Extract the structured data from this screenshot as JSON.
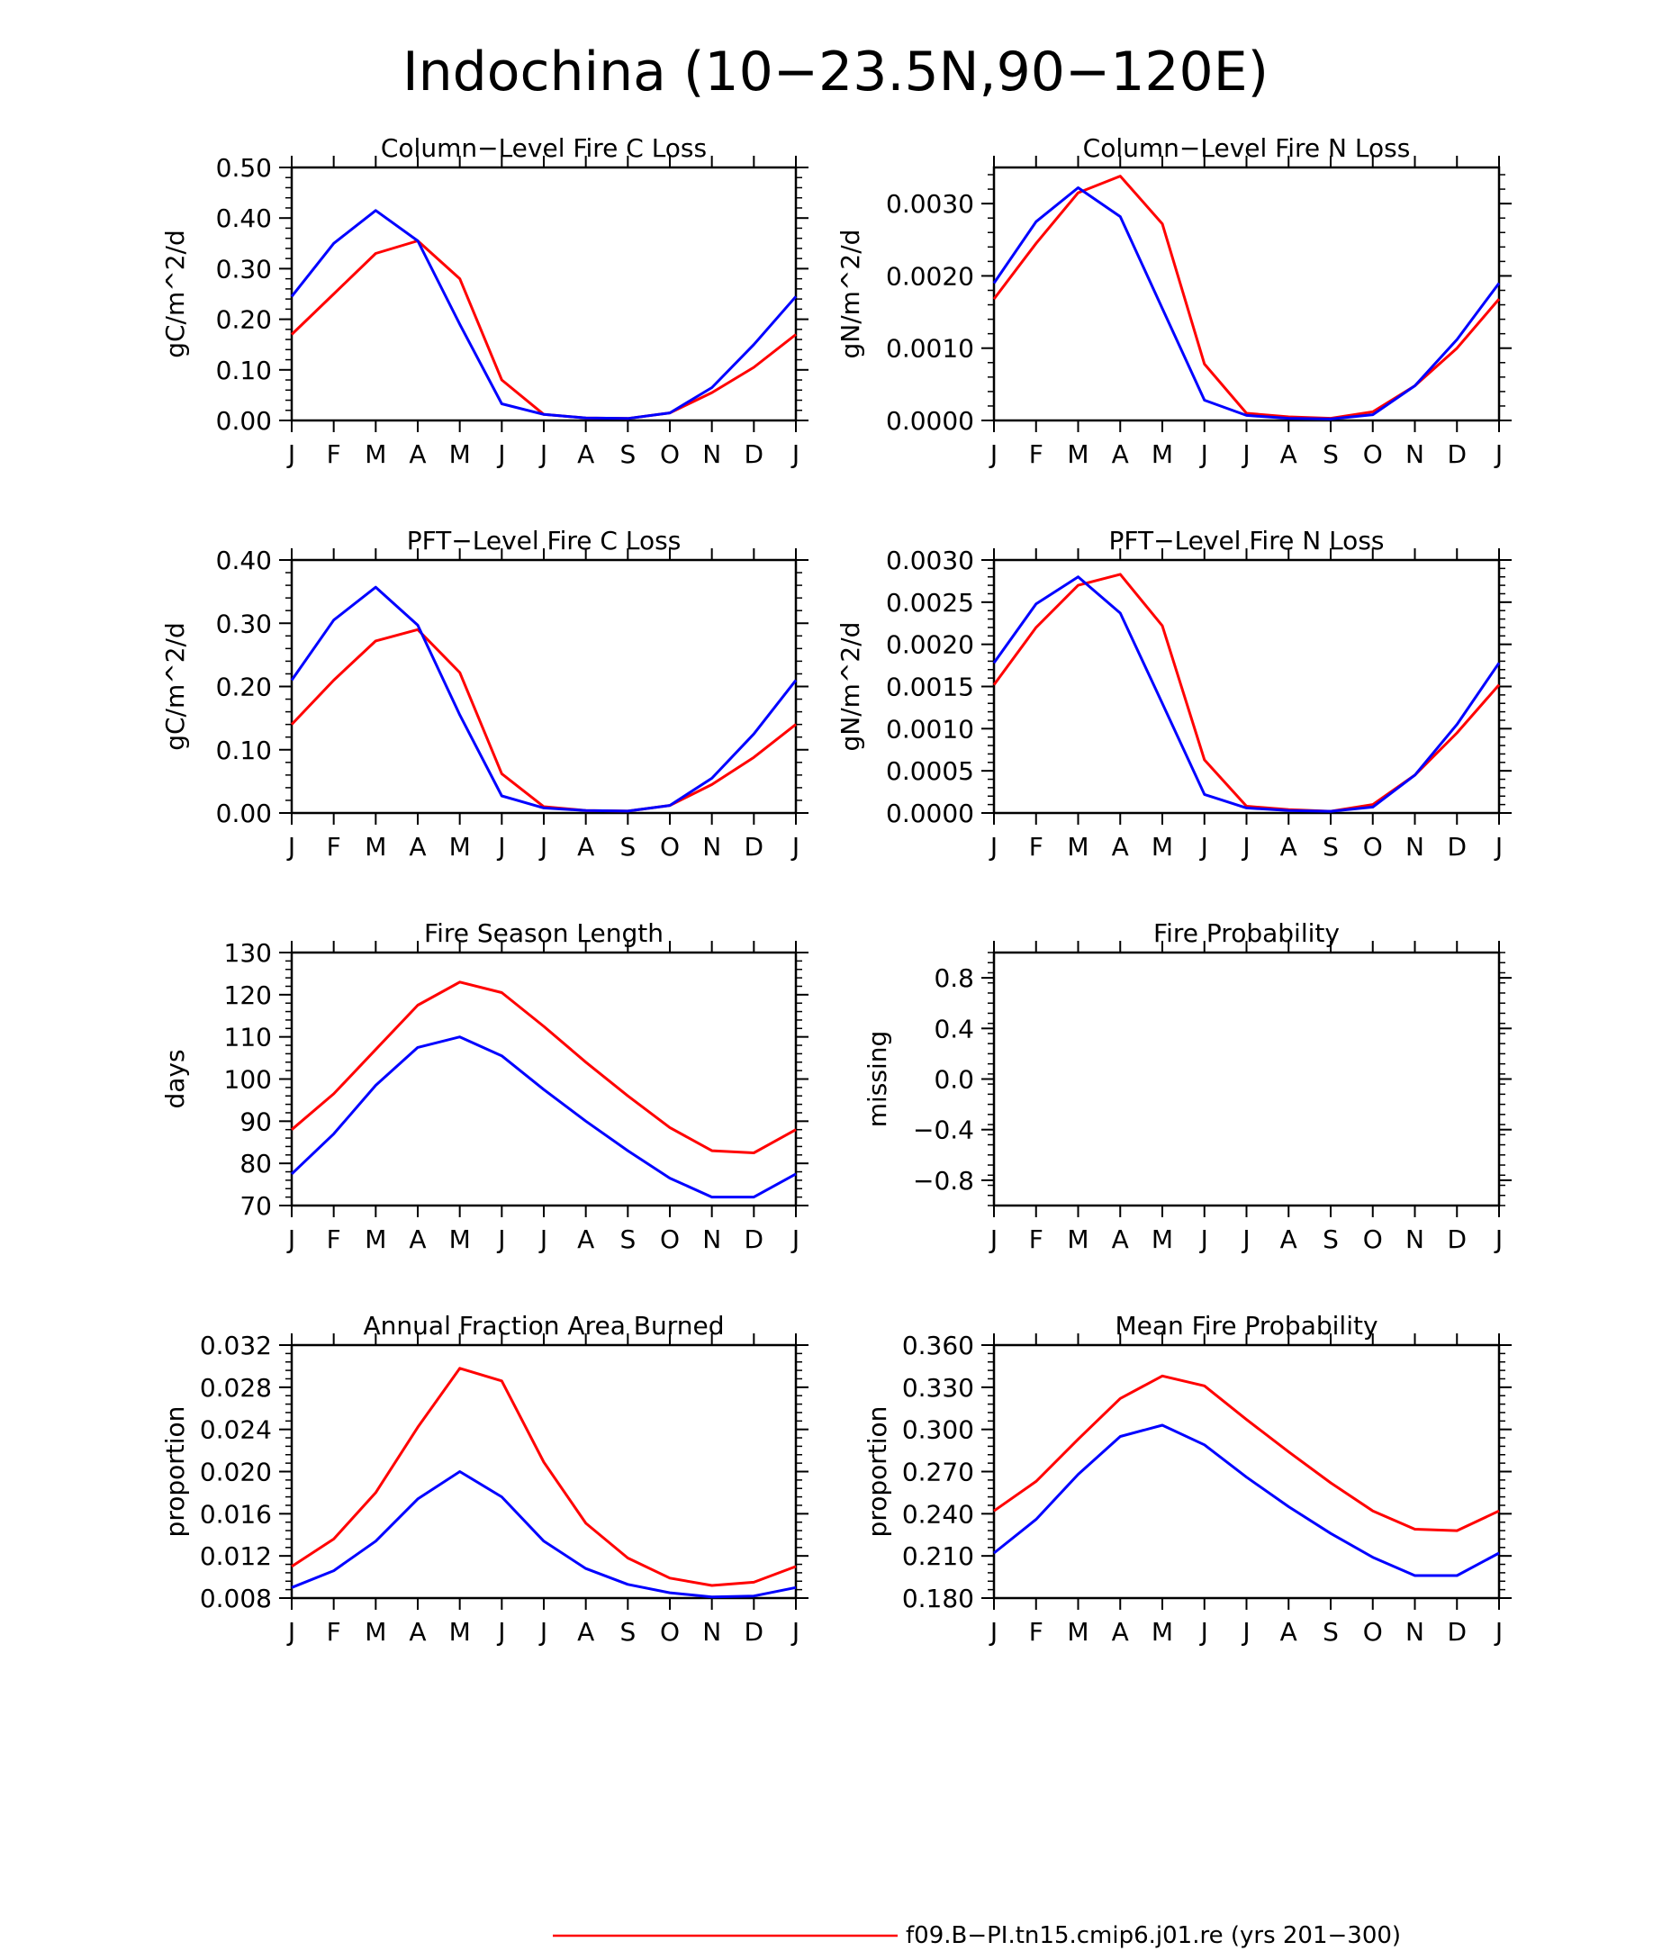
{
  "figure": {
    "title": "Indochina (10−23.5N,90−120E)",
    "legend": [
      {
        "label": "f09.B−PI.tn15.cmip6.j01.re (yrs 201−300)",
        "color": "#ff0000"
      }
    ]
  },
  "colors": {
    "series_a": "#ff0000",
    "series_b": "#0000ff",
    "axis": "#000000",
    "background": "#ffffff"
  },
  "chart_data": [
    {
      "id": "column-fire-c-loss",
      "type": "line",
      "title": "Column−Level Fire C Loss",
      "ylabel": "gC/m^2/d",
      "xlabel": "",
      "categories": [
        "J",
        "F",
        "M",
        "A",
        "M",
        "J",
        "J",
        "A",
        "S",
        "O",
        "N",
        "D",
        "J"
      ],
      "ylim": [
        0,
        0.5
      ],
      "yticks": [
        "0.00",
        "0.10",
        "0.20",
        "0.30",
        "0.40",
        "0.50"
      ],
      "series": [
        {
          "values": [
            0.17,
            0.25,
            0.33,
            0.355,
            0.28,
            0.08,
            0.012,
            0.005,
            0.004,
            0.015,
            0.055,
            0.105,
            0.17
          ],
          "color": "#ff0000"
        },
        {
          "values": [
            0.245,
            0.35,
            0.415,
            0.355,
            0.19,
            0.033,
            0.012,
            0.005,
            0.004,
            0.015,
            0.065,
            0.15,
            0.245
          ],
          "color": "#0000ff"
        }
      ]
    },
    {
      "id": "column-fire-n-loss",
      "type": "line",
      "title": "Column−Level Fire N Loss",
      "ylabel": "gN/m^2/d",
      "xlabel": "",
      "categories": [
        "J",
        "F",
        "M",
        "A",
        "M",
        "J",
        "J",
        "A",
        "S",
        "O",
        "N",
        "D",
        "J"
      ],
      "ylim": [
        0,
        0.0035
      ],
      "yticks": [
        "0.0000",
        "0.0010",
        "0.0020",
        "0.0030"
      ],
      "series": [
        {
          "values": [
            0.00168,
            0.00245,
            0.00315,
            0.00338,
            0.00272,
            0.00078,
            0.0001,
            5e-05,
            3e-05,
            0.00012,
            0.00048,
            0.001,
            0.00168
          ],
          "color": "#ff0000"
        },
        {
          "values": [
            0.0019,
            0.00275,
            0.00322,
            0.00282,
            0.00155,
            0.00028,
            7e-05,
            3e-05,
            2e-05,
            8e-05,
            0.00048,
            0.00112,
            0.0019
          ],
          "color": "#0000ff"
        }
      ]
    },
    {
      "id": "pft-fire-c-loss",
      "type": "line",
      "title": "PFT−Level Fire C Loss",
      "ylabel": "gC/m^2/d",
      "xlabel": "",
      "categories": [
        "J",
        "F",
        "M",
        "A",
        "M",
        "J",
        "J",
        "A",
        "S",
        "O",
        "N",
        "D",
        "J"
      ],
      "ylim": [
        0,
        0.4
      ],
      "yticks": [
        "0.00",
        "0.10",
        "0.20",
        "0.30",
        "0.40"
      ],
      "series": [
        {
          "values": [
            0.14,
            0.21,
            0.272,
            0.29,
            0.222,
            0.062,
            0.01,
            0.004,
            0.003,
            0.012,
            0.045,
            0.088,
            0.14
          ],
          "color": "#ff0000"
        },
        {
          "values": [
            0.21,
            0.305,
            0.357,
            0.297,
            0.155,
            0.027,
            0.008,
            0.004,
            0.003,
            0.012,
            0.055,
            0.125,
            0.21
          ],
          "color": "#0000ff"
        }
      ]
    },
    {
      "id": "pft-fire-n-loss",
      "type": "line",
      "title": "PFT−Level Fire N Loss",
      "ylabel": "gN/m^2/d",
      "xlabel": "",
      "categories": [
        "J",
        "F",
        "M",
        "A",
        "M",
        "J",
        "J",
        "A",
        "S",
        "O",
        "N",
        "D",
        "J"
      ],
      "ylim": [
        0,
        0.003
      ],
      "yticks": [
        "0.0000",
        "0.0005",
        "0.0010",
        "0.0015",
        "0.0020",
        "0.0025",
        "0.0030"
      ],
      "series": [
        {
          "values": [
            0.00152,
            0.0022,
            0.0027,
            0.00283,
            0.00222,
            0.00063,
            8e-05,
            4e-05,
            2e-05,
            0.0001,
            0.00045,
            0.00095,
            0.00152
          ],
          "color": "#ff0000"
        },
        {
          "values": [
            0.00178,
            0.00248,
            0.0028,
            0.00237,
            0.0013,
            0.00022,
            6e-05,
            3e-05,
            2e-05,
            7e-05,
            0.00045,
            0.00105,
            0.00178
          ],
          "color": "#0000ff"
        }
      ]
    },
    {
      "id": "fire-season-length",
      "type": "line",
      "title": "Fire Season Length",
      "ylabel": "days",
      "xlabel": "",
      "categories": [
        "J",
        "F",
        "M",
        "A",
        "M",
        "J",
        "J",
        "A",
        "S",
        "O",
        "N",
        "D",
        "J"
      ],
      "ylim": [
        70,
        130
      ],
      "yticks": [
        "70",
        "80",
        "90",
        "100",
        "110",
        "120",
        "130"
      ],
      "series": [
        {
          "values": [
            88,
            96.5,
            107,
            117.5,
            123,
            120.5,
            112.5,
            104,
            96,
            88.5,
            83,
            82.5,
            88
          ],
          "color": "#ff0000"
        },
        {
          "values": [
            77.5,
            87,
            98.5,
            107.5,
            110,
            105.5,
            97.5,
            90,
            83,
            76.5,
            72,
            72,
            77.5
          ],
          "color": "#0000ff"
        }
      ]
    },
    {
      "id": "fire-probability",
      "type": "line",
      "title": "Fire Probability",
      "ylabel": "missing",
      "xlabel": "",
      "categories": [
        "J",
        "F",
        "M",
        "A",
        "M",
        "J",
        "J",
        "A",
        "S",
        "O",
        "N",
        "D",
        "J"
      ],
      "ylim": [
        -1,
        1
      ],
      "yticks": [
        "−0.8",
        "−0.4",
        "0.0",
        "0.4",
        "0.8"
      ],
      "yticks_values": [
        -0.8,
        -0.4,
        0,
        0.4,
        0.8
      ],
      "series": []
    },
    {
      "id": "annual-fraction-area-burned",
      "type": "line",
      "title": "Annual Fraction Area Burned",
      "ylabel": "proportion",
      "xlabel": "",
      "categories": [
        "J",
        "F",
        "M",
        "A",
        "M",
        "J",
        "J",
        "A",
        "S",
        "O",
        "N",
        "D",
        "J"
      ],
      "ylim": [
        0.008,
        0.032
      ],
      "yticks": [
        "0.008",
        "0.012",
        "0.016",
        "0.020",
        "0.024",
        "0.028",
        "0.032"
      ],
      "series": [
        {
          "values": [
            0.011,
            0.0136,
            0.018,
            0.0242,
            0.0298,
            0.0286,
            0.0209,
            0.0151,
            0.0118,
            0.0099,
            0.0092,
            0.0095,
            0.011
          ],
          "color": "#ff0000"
        },
        {
          "values": [
            0.009,
            0.0106,
            0.0134,
            0.0174,
            0.02,
            0.0176,
            0.0134,
            0.0108,
            0.0093,
            0.0085,
            0.0081,
            0.0082,
            0.009
          ],
          "color": "#0000ff"
        }
      ]
    },
    {
      "id": "mean-fire-probability",
      "type": "line",
      "title": "Mean Fire Probability",
      "ylabel": "proportion",
      "xlabel": "",
      "categories": [
        "J",
        "F",
        "M",
        "A",
        "M",
        "J",
        "J",
        "A",
        "S",
        "O",
        "N",
        "D",
        "J"
      ],
      "ylim": [
        0.18,
        0.36
      ],
      "yticks": [
        "0.180",
        "0.210",
        "0.240",
        "0.270",
        "0.300",
        "0.330",
        "0.360"
      ],
      "series": [
        {
          "values": [
            0.242,
            0.263,
            0.293,
            0.322,
            0.338,
            0.331,
            0.307,
            0.284,
            0.262,
            0.242,
            0.229,
            0.228,
            0.242
          ],
          "color": "#ff0000"
        },
        {
          "values": [
            0.212,
            0.236,
            0.268,
            0.295,
            0.303,
            0.289,
            0.266,
            0.245,
            0.226,
            0.209,
            0.196,
            0.196,
            0.212
          ],
          "color": "#0000ff"
        }
      ]
    }
  ]
}
